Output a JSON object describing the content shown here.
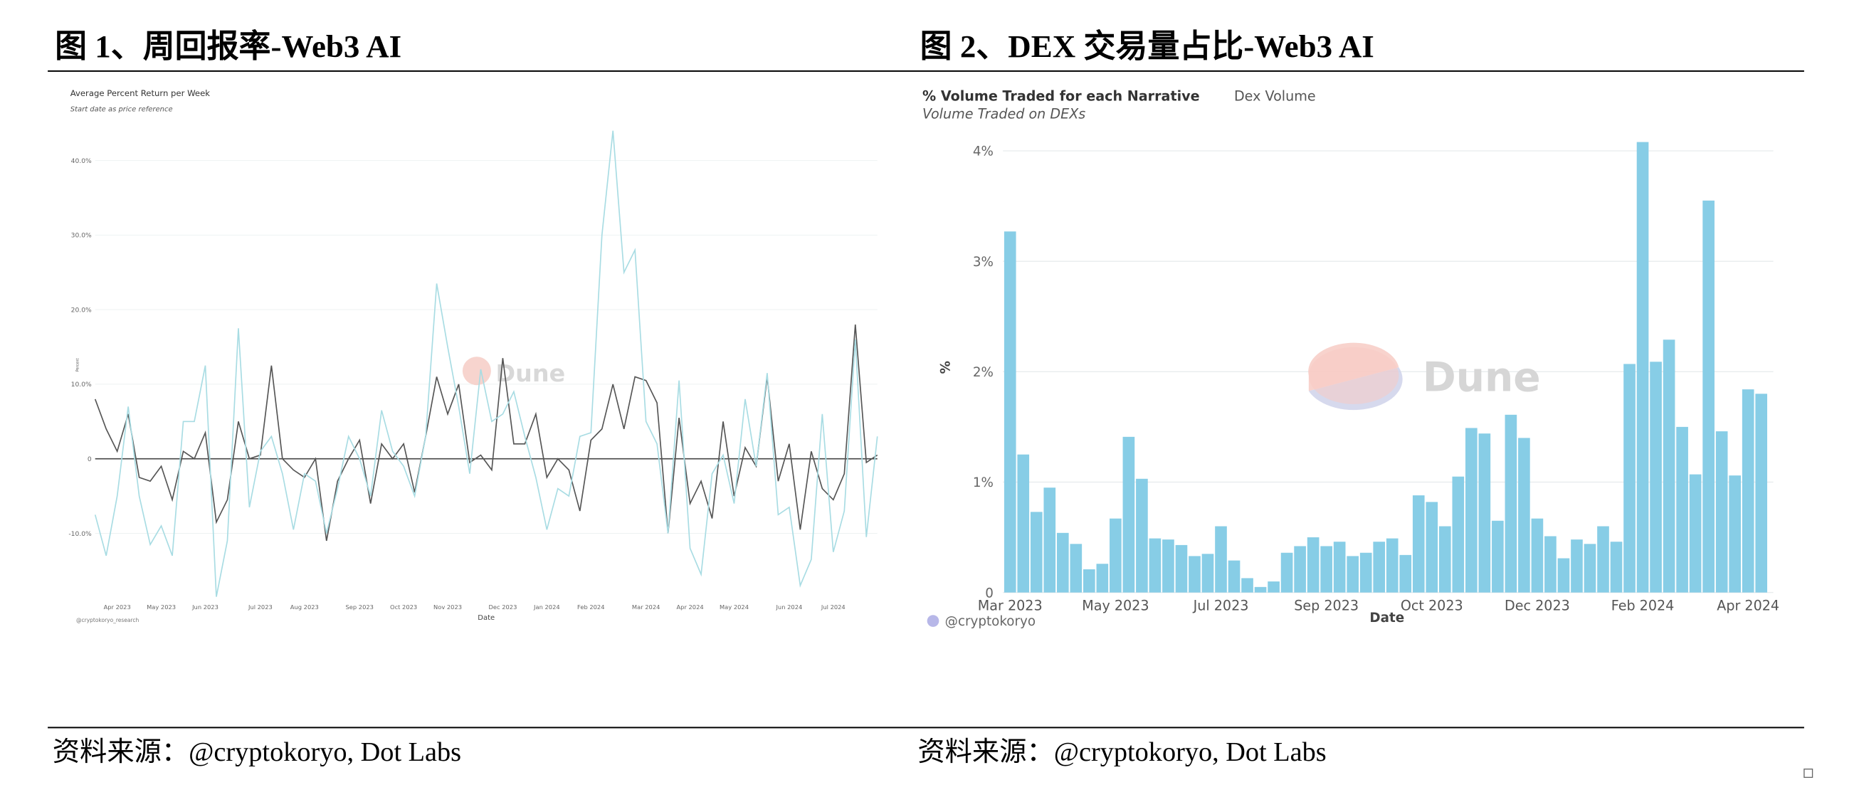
{
  "chart_data": [
    {
      "type": "line",
      "figure_title": "图 1、周回报率-Web3 AI",
      "title": "Average Percent Return per Week",
      "subtitle": "Start date as price reference",
      "xlabel": "Date",
      "ylabel": "Percent",
      "credit": "@cryptokoryo_research",
      "watermark": "Dune",
      "source": "资料来源：@cryptokoryo, Dot Labs",
      "categories": [
        null,
        null,
        "Apr 2023",
        null,
        null,
        null,
        "May 2023",
        null,
        null,
        null,
        "Jun 2023",
        null,
        null,
        null,
        null,
        "Jul 2023",
        null,
        null,
        null,
        "Aug 2023",
        null,
        null,
        null,
        null,
        "Sep 2023",
        null,
        null,
        null,
        "Oct 2023",
        null,
        null,
        null,
        "Nov 2023",
        null,
        null,
        null,
        null,
        "Dec 2023",
        null,
        null,
        null,
        "Jan 2024",
        null,
        null,
        null,
        "Feb 2024",
        null,
        null,
        null,
        null,
        "Mar 2024",
        null,
        null,
        null,
        "Apr 2024",
        null,
        null,
        null,
        "May 2024",
        null,
        null,
        null,
        null,
        "Jun 2024",
        null,
        null,
        null,
        "Jul 2024",
        null,
        null,
        null,
        null
      ],
      "series": [
        {
          "color": "#555555",
          "values": [
            8,
            4,
            1,
            6,
            -2.5,
            -3,
            -1,
            -5.5,
            1,
            0,
            3.5,
            -8.5,
            -5.5,
            5,
            0,
            0.5,
            12.5,
            0,
            -1.5,
            -2.5,
            0,
            -11,
            -3,
            0,
            2.5,
            -6,
            2,
            0,
            2,
            -4.5,
            3,
            11,
            6,
            10,
            -0.5,
            0.5,
            -1.5,
            13.5,
            2,
            2,
            6,
            -2.5,
            0,
            -1.5,
            -7,
            2.5,
            4,
            10,
            4,
            11,
            10.5,
            7.5,
            -10,
            5.5,
            -6,
            -3,
            -8,
            5,
            -5,
            1.5,
            -1,
            11,
            -3,
            2,
            -9.5,
            1,
            -4,
            -5.5,
            -2,
            18,
            -0.5,
            0.5
          ]
        },
        {
          "color": "#a8dce3",
          "values": [
            -7.5,
            -13,
            -5,
            7,
            -5,
            -11.5,
            -9,
            -13,
            5,
            5,
            12.5,
            -18.5,
            -11,
            17.5,
            -6.5,
            1,
            3,
            -2,
            -9.5,
            -2,
            -3,
            -10,
            -4,
            3,
            0,
            -5,
            6.5,
            1,
            -1,
            -5,
            3,
            23.5,
            15,
            7,
            -2,
            12,
            5,
            6,
            9,
            3,
            -2.5,
            -9.5,
            -4,
            -5,
            3,
            3.5,
            30,
            44,
            25,
            28,
            5,
            2,
            -10,
            10.5,
            -12,
            -15.5,
            -2,
            0.5,
            -6,
            8,
            -1,
            11.5,
            -7.5,
            -6.5,
            -17,
            -13.5,
            6,
            -12.5,
            -7,
            16,
            -10.5,
            3
          ]
        }
      ],
      "ylim": [
        -20,
        45
      ],
      "yticks": [
        {
          "value": -10,
          "label": "-10.0%"
        },
        0,
        {
          "value": 10,
          "label": "10.0%"
        },
        {
          "value": 20,
          "label": "20.0%"
        },
        {
          "value": 30,
          "label": "30.0%"
        },
        {
          "value": 40,
          "label": "40.0%"
        }
      ],
      "grid": true
    },
    {
      "type": "bar",
      "figure_title": "图 2、DEX 交易量占比-Web3 AI",
      "title": "% Volume Traded for each Narrative",
      "tab": "Dex Volume",
      "subtitle": "Volume Traded on DEXs",
      "xlabel": "Date",
      "ylabel": "%",
      "credit": "@cryptokoryo",
      "watermark": "Dune",
      "source": "资料来源：@cryptokoryo, Dot Labs",
      "categories": [
        "Mar 2023",
        null,
        null,
        null,
        null,
        null,
        null,
        null,
        "May 2023",
        null,
        null,
        null,
        null,
        null,
        null,
        null,
        "Jul 2023",
        null,
        null,
        null,
        null,
        null,
        null,
        null,
        "Sep 2023",
        null,
        null,
        null,
        null,
        null,
        null,
        null,
        "Oct 2023",
        null,
        null,
        null,
        null,
        null,
        null,
        null,
        "Dec 2023",
        null,
        null,
        null,
        null,
        null,
        null,
        null,
        "Feb 2024",
        null,
        null,
        null,
        null,
        null,
        null,
        null,
        "Apr 2024",
        null
      ],
      "color": "#87cde6",
      "values": [
        3.27,
        1.25,
        0.73,
        0.95,
        0.54,
        0.44,
        0.21,
        0.26,
        0.67,
        1.41,
        1.03,
        0.49,
        0.48,
        0.43,
        0.33,
        0.35,
        0.6,
        0.29,
        0.13,
        0.05,
        0.1,
        0.36,
        0.42,
        0.5,
        0.42,
        0.46,
        0.33,
        0.36,
        0.46,
        0.49,
        0.34,
        0.88,
        0.82,
        0.6,
        1.05,
        1.49,
        1.44,
        0.65,
        1.61,
        1.4,
        0.67,
        0.51,
        0.31,
        0.48,
        0.44,
        0.6,
        0.46,
        2.07,
        4.08,
        2.09,
        2.29,
        1.5,
        1.07,
        3.55,
        1.46,
        1.06,
        1.84,
        1.8
      ],
      "ylim": [
        0,
        4.1
      ],
      "yticks": [
        0,
        {
          "value": 1,
          "label": "1%"
        },
        {
          "value": 2,
          "label": "2%"
        },
        {
          "value": 3,
          "label": "3%"
        },
        {
          "value": 4,
          "label": "4%"
        }
      ],
      "grid": true
    }
  ]
}
